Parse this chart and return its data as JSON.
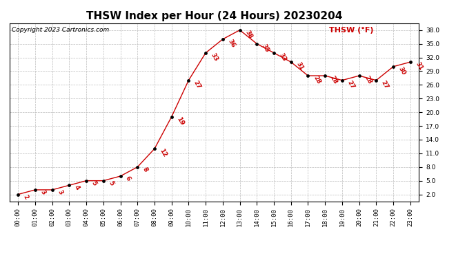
{
  "title": "THSW Index per Hour (24 Hours) 20230204",
  "copyright": "Copyright 2023 Cartronics.com",
  "legend_label": "THSW (°F)",
  "hours": [
    "00:00",
    "01:00",
    "02:00",
    "03:00",
    "04:00",
    "05:00",
    "06:00",
    "07:00",
    "08:00",
    "09:00",
    "10:00",
    "11:00",
    "12:00",
    "13:00",
    "14:00",
    "15:00",
    "16:00",
    "17:00",
    "18:00",
    "19:00",
    "20:00",
    "21:00",
    "22:00",
    "23:00"
  ],
  "values": [
    2,
    3,
    3,
    4,
    5,
    5,
    6,
    8,
    12,
    19,
    27,
    33,
    36,
    38,
    35,
    33,
    31,
    28,
    28,
    27,
    28,
    27,
    30,
    31
  ],
  "line_color": "#cc0000",
  "marker_color": "#000000",
  "label_color": "#cc0000",
  "bg_color": "#ffffff",
  "grid_color": "#bbbbbb",
  "yticks": [
    2.0,
    5.0,
    8.0,
    11.0,
    14.0,
    17.0,
    20.0,
    23.0,
    26.0,
    29.0,
    32.0,
    35.0,
    38.0
  ],
  "ymin": 0.5,
  "ymax": 39.5,
  "title_fontsize": 11,
  "label_fontsize": 6.5,
  "tick_fontsize": 6.5,
  "copyright_fontsize": 6.5,
  "legend_fontsize": 8
}
